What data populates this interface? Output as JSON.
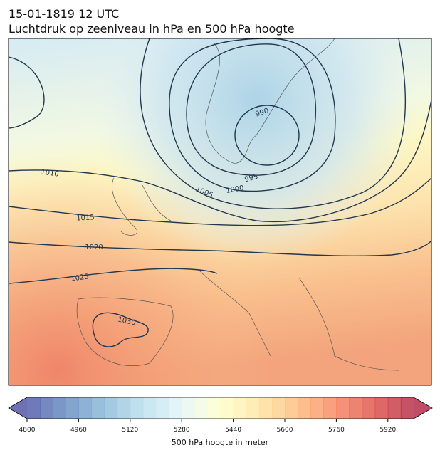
{
  "title": "15-01-1819 12 UTC",
  "subtitle": "Luchtdruk op zeeniveau in hPa en 500 hPa hoogte",
  "isobars": [
    990,
    995,
    1000,
    1005,
    1010,
    1015,
    1020,
    1025,
    1030
  ],
  "colorbar": {
    "label": "500 hPa hoogte in meter",
    "lim": [
      4800,
      6000
    ],
    "ticks": [
      4800,
      4960,
      5120,
      5280,
      5440,
      5600,
      5760,
      5920
    ]
  }
}
